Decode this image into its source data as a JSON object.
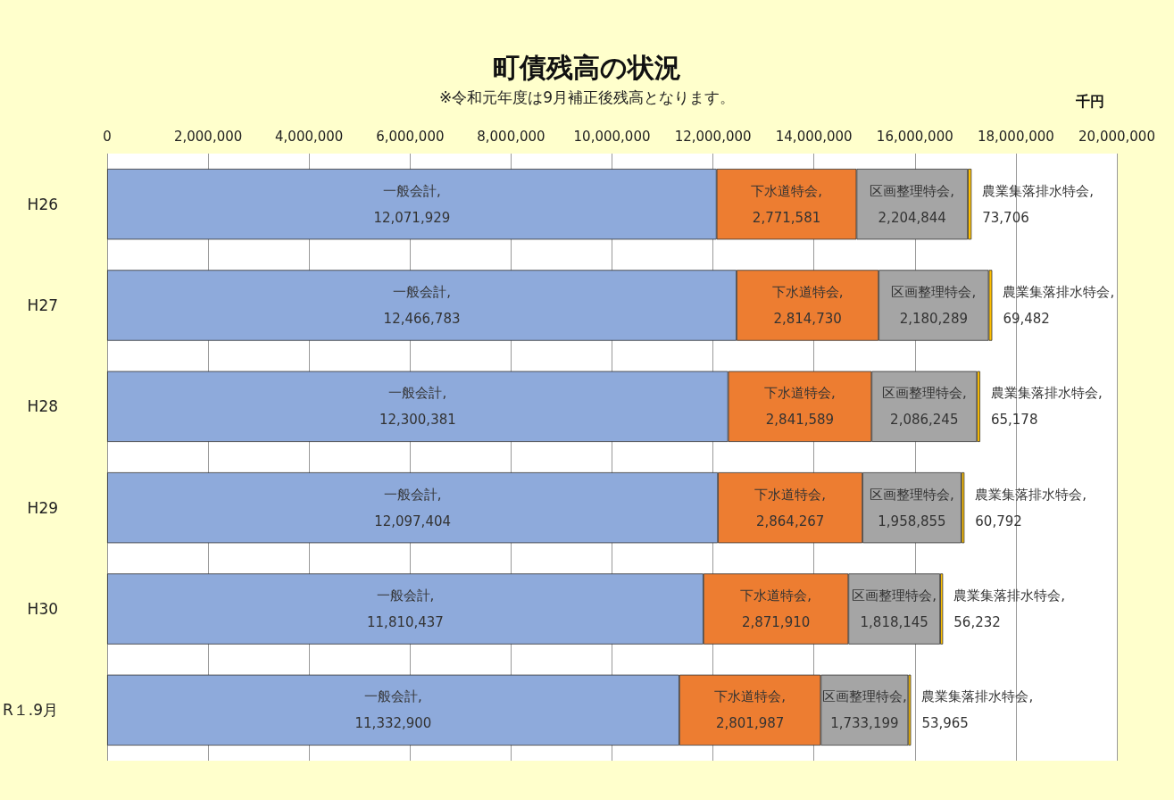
{
  "chart_data": {
    "type": "bar",
    "orientation": "horizontal",
    "stacked": true,
    "title": "町債残高の状況",
    "subtitle": "※令和元年度は9月補正後残高となります。",
    "xlabel": "千円",
    "categories": [
      "H26",
      "H27",
      "H28",
      "H29",
      "H30",
      "R１.9月"
    ],
    "series": [
      {
        "name": "一般会計,",
        "color": "#8eaadb",
        "values": [
          12071929,
          12466783,
          12300381,
          12097404,
          11810437,
          11332900
        ],
        "value_labels": [
          "12,071,929",
          "12,466,783",
          "12,300,381",
          "12,097,404",
          "11,810,437",
          "11,332,900"
        ]
      },
      {
        "name": "下水道特会,",
        "color": "#ed7d31",
        "values": [
          2771581,
          2814730,
          2841589,
          2864267,
          2871910,
          2801987
        ],
        "value_labels": [
          "2,771,581",
          "2,814,730",
          "2,841,589",
          "2,864,267",
          "2,871,910",
          "2,801,987"
        ]
      },
      {
        "name": "区画整理特会,",
        "color": "#a5a5a5",
        "values": [
          2204844,
          2180289,
          2086245,
          1958855,
          1818145,
          1733199
        ],
        "value_labels": [
          "2,204,844",
          "2,180,289",
          "2,086,245",
          "1,958,855",
          "1,818,145",
          "1,733,199"
        ]
      },
      {
        "name": "農業集落排水特会,",
        "color": "#ffc000",
        "values": [
          73706,
          69482,
          65178,
          60792,
          56232,
          53965
        ],
        "value_labels": [
          "73,706",
          "69,482",
          "65,178",
          "60,792",
          "56,232",
          "53,965"
        ]
      }
    ],
    "xlim": [
      0,
      20000000
    ],
    "xticks": [
      0,
      {
        "value": 2000000,
        "label": "2,000,000"
      },
      {
        "value": 4000000,
        "label": "4,000,000"
      },
      {
        "value": 6000000,
        "label": "6,000,000"
      },
      {
        "value": 8000000,
        "label": "8,000,000"
      },
      {
        "value": 10000000,
        "label": "10,000,000"
      },
      {
        "value": 12000000,
        "label": "12,000,000"
      },
      {
        "value": 14000000,
        "label": "14,000,000"
      },
      {
        "value": 16000000,
        "label": "16,000,000"
      },
      {
        "value": 18000000,
        "label": "18,000,000"
      },
      {
        "value": 20000000,
        "label": "20,000,000"
      }
    ],
    "grid": "x",
    "legend": false
  }
}
